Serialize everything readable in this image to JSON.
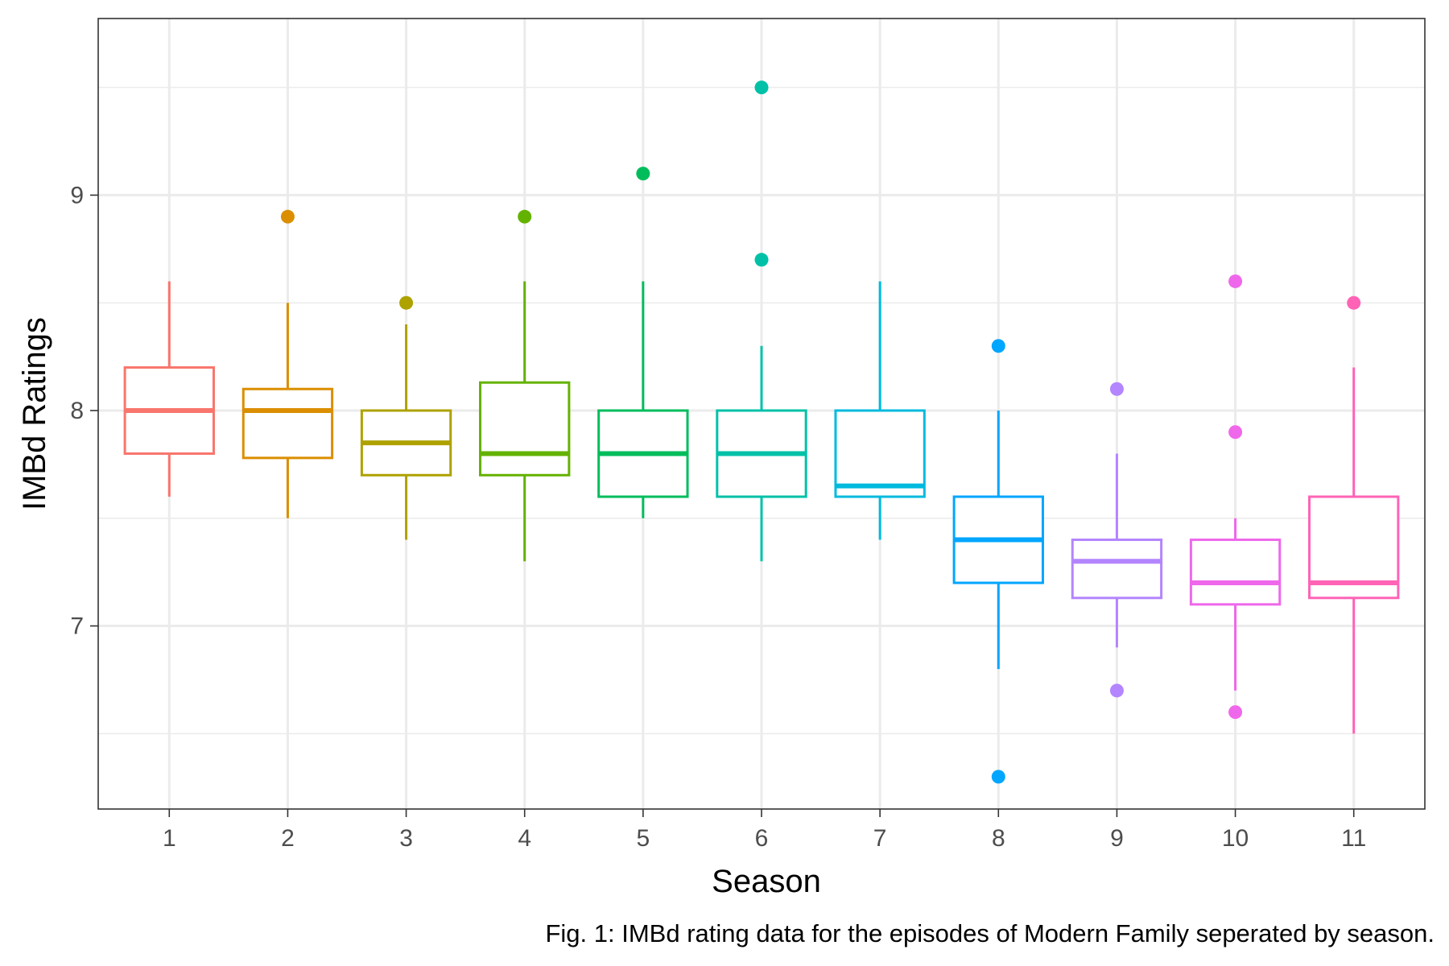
{
  "chart_data": {
    "type": "boxplot",
    "xlabel": "Season",
    "ylabel": "IMBd Ratings",
    "caption": "Fig. 1: IMBd rating data for the episodes of Modern Family seperated by season.",
    "ylim": [
      6.15,
      9.82
    ],
    "yticks": [
      7,
      8,
      9
    ],
    "yminor": [
      6.5,
      7.5,
      8.5,
      9.5
    ],
    "grid": true,
    "legend": "none",
    "series": [
      {
        "category": "1",
        "color": "#F8766D",
        "q1": 7.8,
        "median": 8.0,
        "q3": 8.2,
        "whisker_low": 7.6,
        "whisker_high": 8.6,
        "outliers": []
      },
      {
        "category": "2",
        "color": "#DB8E00",
        "q1": 7.78,
        "median": 8.0,
        "q3": 8.1,
        "whisker_low": 7.5,
        "whisker_high": 8.5,
        "outliers": [
          8.9
        ]
      },
      {
        "category": "3",
        "color": "#AEA200",
        "q1": 7.7,
        "median": 7.85,
        "q3": 8.0,
        "whisker_low": 7.4,
        "whisker_high": 8.4,
        "outliers": [
          8.5
        ]
      },
      {
        "category": "4",
        "color": "#64B200",
        "q1": 7.7,
        "median": 7.8,
        "q3": 8.13,
        "whisker_low": 7.3,
        "whisker_high": 8.6,
        "outliers": [
          8.9
        ]
      },
      {
        "category": "5",
        "color": "#00BD5C",
        "q1": 7.6,
        "median": 7.8,
        "q3": 8.0,
        "whisker_low": 7.5,
        "whisker_high": 8.6,
        "outliers": [
          9.1
        ]
      },
      {
        "category": "6",
        "color": "#00C1A7",
        "q1": 7.6,
        "median": 7.8,
        "q3": 8.0,
        "whisker_low": 7.3,
        "whisker_high": 8.3,
        "outliers": [
          8.7,
          9.5
        ]
      },
      {
        "category": "7",
        "color": "#00BADE",
        "q1": 7.6,
        "median": 7.65,
        "q3": 8.0,
        "whisker_low": 7.4,
        "whisker_high": 8.6,
        "outliers": []
      },
      {
        "category": "8",
        "color": "#00A6FF",
        "q1": 7.2,
        "median": 7.4,
        "q3": 7.6,
        "whisker_low": 6.8,
        "whisker_high": 8.0,
        "outliers": [
          6.3,
          8.3
        ]
      },
      {
        "category": "9",
        "color": "#B385FF",
        "q1": 7.13,
        "median": 7.3,
        "q3": 7.4,
        "whisker_low": 6.9,
        "whisker_high": 7.8,
        "outliers": [
          6.7,
          8.1
        ]
      },
      {
        "category": "10",
        "color": "#EF67EB",
        "q1": 7.1,
        "median": 7.2,
        "q3": 7.4,
        "whisker_low": 6.7,
        "whisker_high": 7.5,
        "outliers": [
          6.6,
          7.9,
          8.6
        ]
      },
      {
        "category": "11",
        "color": "#FF63B6",
        "q1": 7.13,
        "median": 7.2,
        "q3": 7.6,
        "whisker_low": 6.5,
        "whisker_high": 8.2,
        "outliers": [
          8.5
        ]
      }
    ]
  }
}
